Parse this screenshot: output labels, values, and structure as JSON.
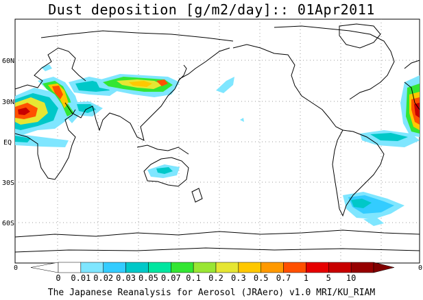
{
  "title": "Dust deposition [g/m2/day]:: 01Apr2011",
  "footer": "The Japanese Reanalysis for Aerosol (JRAero) v1.0 MRI/KU_RIAM",
  "lat_labels": [
    "60N",
    "30N",
    "EQ",
    "30S",
    "60S"
  ],
  "edge_label_left": "0",
  "edge_label_right": "0",
  "colorbar": {
    "colors": [
      "#ffffff",
      "#ffffff",
      "#7fe6ff",
      "#33ccff",
      "#00c8c8",
      "#00e6a0",
      "#33e633",
      "#99e633",
      "#e6e633",
      "#ffc800",
      "#ff9900",
      "#ff5000",
      "#e60000",
      "#c80000",
      "#960000",
      "#800000"
    ],
    "labels": [
      "0",
      "0.01",
      "0.02",
      "0.03",
      "0.05",
      "0.07",
      "0.1",
      "0.2",
      "0.3",
      "0.5",
      "0.7",
      "1",
      "5",
      "10"
    ]
  },
  "dust_palette": {
    "light": "#7fe6ff",
    "cyan": "#33ccff",
    "teal": "#00c8c8",
    "green": "#33e633",
    "yellow": "#e6e633",
    "orange": "#ffc800",
    "red": "#ff5000",
    "darkred": "#c80000"
  }
}
